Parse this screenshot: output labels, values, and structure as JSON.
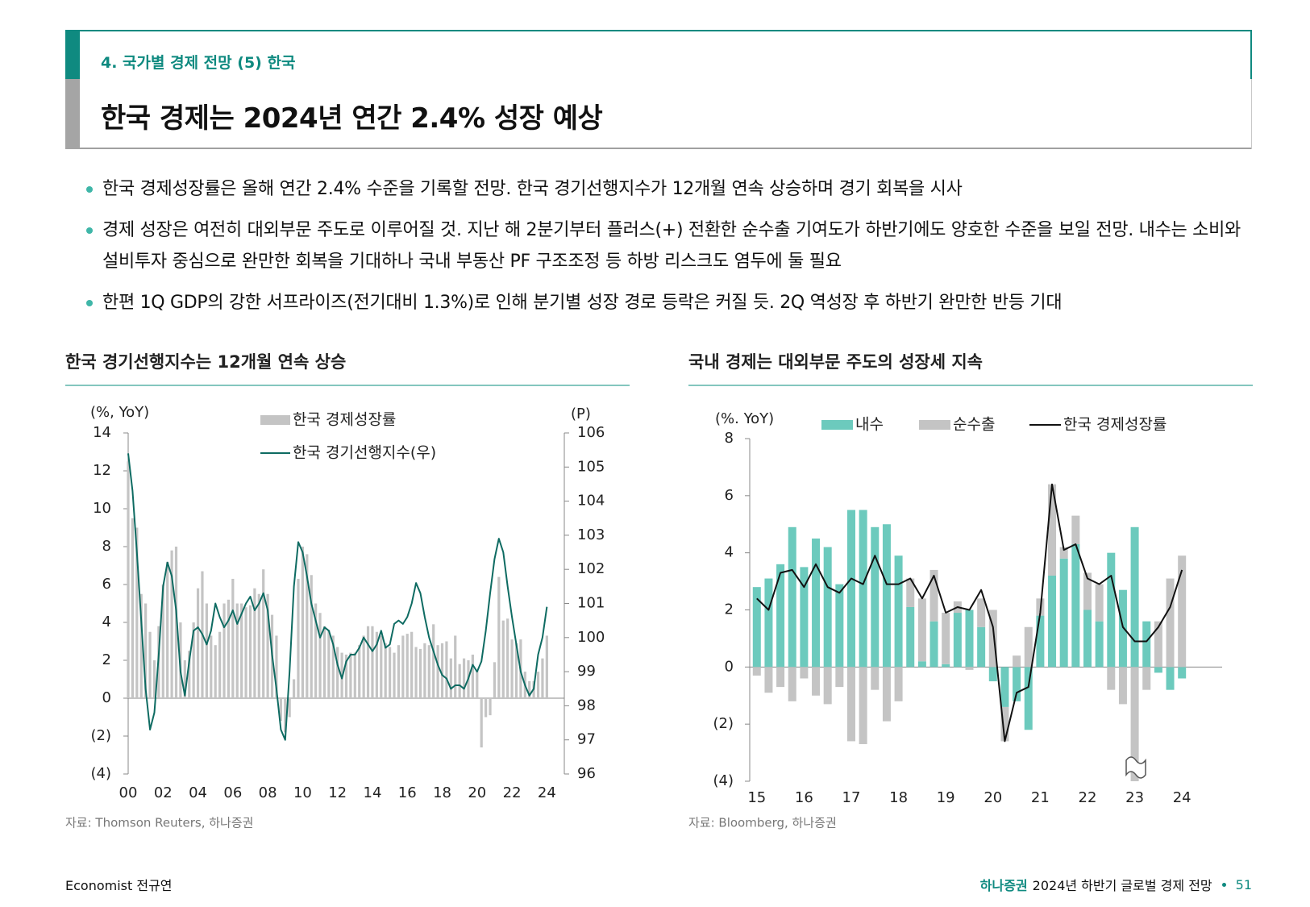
{
  "header": {
    "section": "4. 국가별 경제 전망 (5) 한국",
    "title": "한국 경제는 2024년 연간 2.4% 성장 예상"
  },
  "bullets": [
    "한국 경제성장률은 올해 연간 2.4% 수준을 기록할 전망. 한국 경기선행지수가 12개월 연속 상승하며 경기 회복을 시사",
    "경제 성장은 여전히 대외부문 주도로 이루어질 것. 지난 해 2분기부터 플러스(+) 전환한 순수출 기여도가 하반기에도 양호한 수준을 보일 전망. 내수는 소비와 설비투자 중심으로 완만한 회복을 기대하나 국내 부동산 PF 구조조정 등 하방 리스크도 염두에 둘 필요",
    "한편 1Q GDP의 강한 서프라이즈(전기대비 1.3%)로 인해 분기별 성장 경로 등락은 커질 듯. 2Q 역성장 후 하반기 완만한 반등 기대"
  ],
  "chart_data": [
    {
      "type": "combo",
      "title": "한국 경기선행지수는 12개월 연속 상승",
      "source": "자료: Thomson Reuters, 하나증권",
      "y_label": "(%, YoY)",
      "y2_label": "(P)",
      "x": [
        2000,
        2000.25,
        2000.5,
        2000.75,
        2001,
        2001.25,
        2001.5,
        2001.75,
        2002,
        2002.25,
        2002.5,
        2002.75,
        2003,
        2003.25,
        2003.5,
        2003.75,
        2004,
        2004.25,
        2004.5,
        2004.75,
        2005,
        2005.25,
        2005.5,
        2005.75,
        2006,
        2006.25,
        2006.5,
        2006.75,
        2007,
        2007.25,
        2007.5,
        2007.75,
        2008,
        2008.25,
        2008.5,
        2008.75,
        2009,
        2009.25,
        2009.5,
        2009.75,
        2010,
        2010.25,
        2010.5,
        2010.75,
        2011,
        2011.25,
        2011.5,
        2011.75,
        2012,
        2012.25,
        2012.5,
        2012.75,
        2013,
        2013.25,
        2013.5,
        2013.75,
        2014,
        2014.25,
        2014.5,
        2014.75,
        2015,
        2015.25,
        2015.5,
        2015.75,
        2016,
        2016.25,
        2016.5,
        2016.75,
        2017,
        2017.25,
        2017.5,
        2017.75,
        2018,
        2018.25,
        2018.5,
        2018.75,
        2019,
        2019.25,
        2019.5,
        2019.75,
        2020,
        2020.25,
        2020.5,
        2020.75,
        2021,
        2021.25,
        2021.5,
        2021.75,
        2022,
        2022.25,
        2022.5,
        2022.75,
        2023,
        2023.25,
        2023.5,
        2023.75,
        2024
      ],
      "series": [
        {
          "name": "한국 경제성장률",
          "type": "bar",
          "color": "#c4c4c4",
          "values": [
            12.5,
            9.5,
            9,
            5.5,
            5,
            3.5,
            2,
            3.8,
            6,
            7.2,
            7.8,
            8,
            4,
            2,
            2.5,
            4,
            5.8,
            6.7,
            5,
            3.3,
            2.8,
            3.5,
            5,
            5.2,
            6.3,
            5,
            5,
            4.8,
            4.9,
            5.8,
            5.5,
            6.8,
            5.5,
            4.4,
            3.3,
            -1.2,
            -1.8,
            -1,
            1,
            6.3,
            8,
            7.6,
            6.5,
            5,
            4.5,
            3.8,
            3.6,
            3.3,
            2.7,
            2.4,
            2.3,
            2.4,
            2.4,
            2.8,
            3.3,
            3.8,
            3.8,
            3.5,
            3.3,
            2.9,
            2.7,
            2.4,
            2.8,
            3.3,
            3.4,
            3.5,
            2.7,
            2.6,
            2.9,
            2.8,
            3.9,
            2.8,
            2.9,
            3,
            2.1,
            3.3,
            1.8,
            2.1,
            2,
            2.3,
            1.5,
            -2.6,
            -1,
            -0.9,
            1.9,
            6.4,
            4.1,
            4.2,
            3.1,
            2.9,
            3.1,
            1.4,
            0.9,
            0.9,
            1.4,
            2.1,
            3.3
          ]
        },
        {
          "name": "한국 경기선행지수(우)",
          "type": "line",
          "axis": "y2",
          "color": "#0e6b62",
          "values": [
            105.4,
            104.3,
            102.5,
            100.5,
            98.5,
            97.3,
            97.8,
            99.5,
            101.5,
            102.2,
            101.8,
            100.8,
            99,
            98.3,
            99.3,
            100.2,
            100.3,
            100.1,
            99.8,
            100.2,
            101,
            100.6,
            100.3,
            100.5,
            100.8,
            100.4,
            100.7,
            101,
            101.2,
            100.8,
            101,
            101.3,
            100.8,
            99.5,
            98.5,
            97.3,
            97,
            99,
            101.5,
            102.8,
            102.5,
            101.8,
            101,
            100.5,
            100,
            100.3,
            100.2,
            99.8,
            99.2,
            98.8,
            99.3,
            99.5,
            99.5,
            99.7,
            100,
            99.8,
            99.6,
            99.8,
            100.2,
            99.7,
            99.8,
            100.4,
            100.5,
            100.4,
            100.6,
            101,
            101.6,
            101.3,
            100.6,
            100,
            99.6,
            99.2,
            98.9,
            98.8,
            98.5,
            98.6,
            98.6,
            98.5,
            98.8,
            99.2,
            99,
            99.3,
            100.2,
            101.3,
            102.3,
            102.9,
            102.5,
            101.5,
            100.6,
            99.8,
            99,
            98.6,
            98.3,
            98.5,
            99.5,
            100,
            100.9
          ]
        }
      ],
      "xlim": [
        2000,
        2025
      ],
      "xticks": [
        {
          "value": 2000,
          "label": "00"
        },
        {
          "value": 2002,
          "label": "02"
        },
        {
          "value": 2004,
          "label": "04"
        },
        {
          "value": 2006,
          "label": "06"
        },
        {
          "value": 2008,
          "label": "08"
        },
        {
          "value": 2010,
          "label": "10"
        },
        {
          "value": 2012,
          "label": "12"
        },
        {
          "value": 2014,
          "label": "14"
        },
        {
          "value": 2016,
          "label": "16"
        },
        {
          "value": 2018,
          "label": "18"
        },
        {
          "value": 2020,
          "label": "20"
        },
        {
          "value": 2022,
          "label": "22"
        },
        {
          "value": 2024,
          "label": "24"
        }
      ],
      "ylim": [
        -4,
        14
      ],
      "yticks": [
        {
          "value": -4,
          "label": "(4)"
        },
        {
          "value": -2,
          "label": "(2)"
        },
        0,
        2,
        4,
        6,
        8,
        10,
        12,
        14
      ],
      "y2lim": [
        96,
        106
      ],
      "y2ticks": [
        96,
        97,
        98,
        99,
        100,
        101,
        102,
        103,
        104,
        105,
        106
      ],
      "stacked": false
    },
    {
      "type": "combo",
      "title": "국내 경제는 대외부문 주도의 성장세 지속",
      "source": "자료: Bloomberg, 하나증권",
      "y_label": "(%. YoY)",
      "x": [
        2015,
        2015.25,
        2015.5,
        2015.75,
        2016,
        2016.25,
        2016.5,
        2016.75,
        2017,
        2017.25,
        2017.5,
        2017.75,
        2018,
        2018.25,
        2018.5,
        2018.75,
        2019,
        2019.25,
        2019.5,
        2019.75,
        2020,
        2020.25,
        2020.5,
        2020.75,
        2021,
        2021.25,
        2021.5,
        2021.75,
        2022,
        2022.25,
        2022.5,
        2022.75,
        2023,
        2023.25,
        2023.5,
        2023.75,
        2024
      ],
      "series": [
        {
          "name": "내수",
          "type": "bar",
          "color": "#6ccabd",
          "values": [
            2.8,
            3.1,
            3.6,
            4.9,
            3.5,
            4.5,
            4.2,
            2.9,
            5.5,
            5.5,
            4.9,
            5.0,
            3.9,
            2.1,
            0.2,
            1.6,
            0.1,
            1.9,
            2.0,
            1.4,
            -0.5,
            -1.4,
            -1.2,
            -2.2,
            1.8,
            3.2,
            3.8,
            4.3,
            2.0,
            1.6,
            4.0,
            2.7,
            4.9,
            1.6,
            -0.2,
            -0.8,
            -0.4
          ]
        },
        {
          "name": "순수출",
          "type": "bar",
          "color": "#c4c4c4",
          "values": [
            -0.3,
            -0.9,
            -0.7,
            -1.2,
            -0.4,
            -1.0,
            -1.3,
            -0.7,
            -2.6,
            -2.7,
            -0.8,
            -1.9,
            -1.2,
            1.0,
            2.2,
            1.8,
            1.8,
            0.4,
            -0.1,
            1.0,
            2.0,
            -1.2,
            0.4,
            1.4,
            0.6,
            3.2,
            0.4,
            1.0,
            1.3,
            1.3,
            -0.8,
            -1.3,
            -4.0,
            -0.8,
            1.6,
            3.1,
            3.9
          ]
        },
        {
          "name": "한국 경제성장률",
          "type": "line",
          "color": "#111111",
          "values": [
            2.4,
            2.0,
            3.3,
            3.4,
            2.8,
            3.6,
            2.8,
            2.6,
            3.1,
            2.9,
            3.9,
            2.9,
            2.9,
            3.1,
            2.4,
            3.2,
            1.9,
            2.1,
            2.0,
            2.7,
            1.4,
            -2.6,
            -0.9,
            -0.7,
            1.9,
            6.4,
            4.1,
            4.3,
            3.1,
            2.9,
            3.2,
            1.4,
            0.9,
            0.9,
            1.4,
            2.1,
            3.4
          ]
        }
      ],
      "xlim": [
        2014.85,
        2024.85
      ],
      "xticks": [
        {
          "value": 2015,
          "label": "15"
        },
        {
          "value": 2016,
          "label": "16"
        },
        {
          "value": 2017,
          "label": "17"
        },
        {
          "value": 2018,
          "label": "18"
        },
        {
          "value": 2019,
          "label": "19"
        },
        {
          "value": 2020,
          "label": "20"
        },
        {
          "value": 2021,
          "label": "21"
        },
        {
          "value": 2022,
          "label": "22"
        },
        {
          "value": 2023,
          "label": "23"
        },
        {
          "value": 2024,
          "label": "24"
        }
      ],
      "ylim": [
        -4,
        8
      ],
      "yticks": [
        {
          "value": -4,
          "label": "(4)"
        },
        {
          "value": -2,
          "label": "(2)"
        },
        0,
        2,
        4,
        6,
        8
      ],
      "stacked": true
    }
  ],
  "footer": {
    "author": "Economist 전규연",
    "brand": "하나증권",
    "publication": "2024년 하반기 글로벌 경제 전망",
    "page": 51
  }
}
